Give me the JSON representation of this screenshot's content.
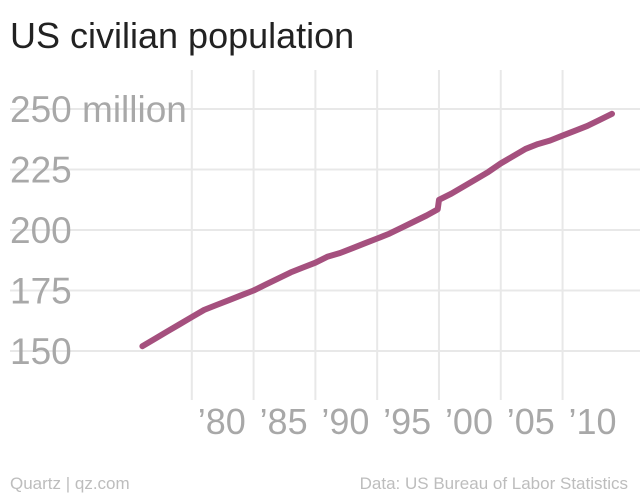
{
  "header": {
    "title": "US civilian population"
  },
  "footer": {
    "source_left": "Quartz | qz.com",
    "source_right": "Data: US Bureau of Labor Statistics"
  },
  "colors": {
    "line": "#a5507e",
    "grid": "#e8e8e8",
    "tick_label": "#a8a8a8",
    "title": "#222222",
    "footer": "#bdbdbd"
  },
  "chart_data": {
    "type": "line",
    "title": "US civilian population",
    "xlabel": "",
    "ylabel": "",
    "ylim": [
      150,
      250
    ],
    "xlim": [
      1975,
      2014
    ],
    "grid": true,
    "y_ticks": [
      {
        "value": 150,
        "label": "150"
      },
      {
        "value": 175,
        "label": "175"
      },
      {
        "value": 200,
        "label": "200"
      },
      {
        "value": 225,
        "label": "225"
      },
      {
        "value": 250,
        "label": "250 million"
      }
    ],
    "x_ticks": [
      {
        "value": 1980,
        "label": "’80"
      },
      {
        "value": 1985,
        "label": "’85"
      },
      {
        "value": 1990,
        "label": "’90"
      },
      {
        "value": 1995,
        "label": "’95"
      },
      {
        "value": 2000,
        "label": "’00"
      },
      {
        "value": 2005,
        "label": "’05"
      },
      {
        "value": 2010,
        "label": "’10"
      }
    ],
    "series": [
      {
        "x": [
          1976,
          1977,
          1978,
          1979,
          1980,
          1981,
          1982,
          1983,
          1984,
          1985,
          1986,
          1987,
          1988,
          1989,
          1990,
          1991,
          1992,
          1993,
          1994,
          1995,
          1996,
          1997,
          1998,
          1999,
          1999.9,
          2000,
          2001,
          2002,
          2003,
          2004,
          2005,
          2006,
          2007,
          2008,
          2009,
          2010,
          2011,
          2012,
          2013,
          2014
        ],
        "values": [
          152,
          155,
          158,
          161,
          164,
          167,
          169,
          171,
          173,
          175,
          177.5,
          180,
          182.5,
          184.5,
          186.5,
          189,
          190.5,
          192.5,
          194.5,
          196.5,
          198.5,
          201,
          203.5,
          206,
          208.5,
          212.5,
          215,
          218,
          221,
          224,
          227.5,
          230.5,
          233.5,
          235.5,
          237,
          239,
          241,
          243,
          245.5,
          248
        ]
      }
    ]
  }
}
